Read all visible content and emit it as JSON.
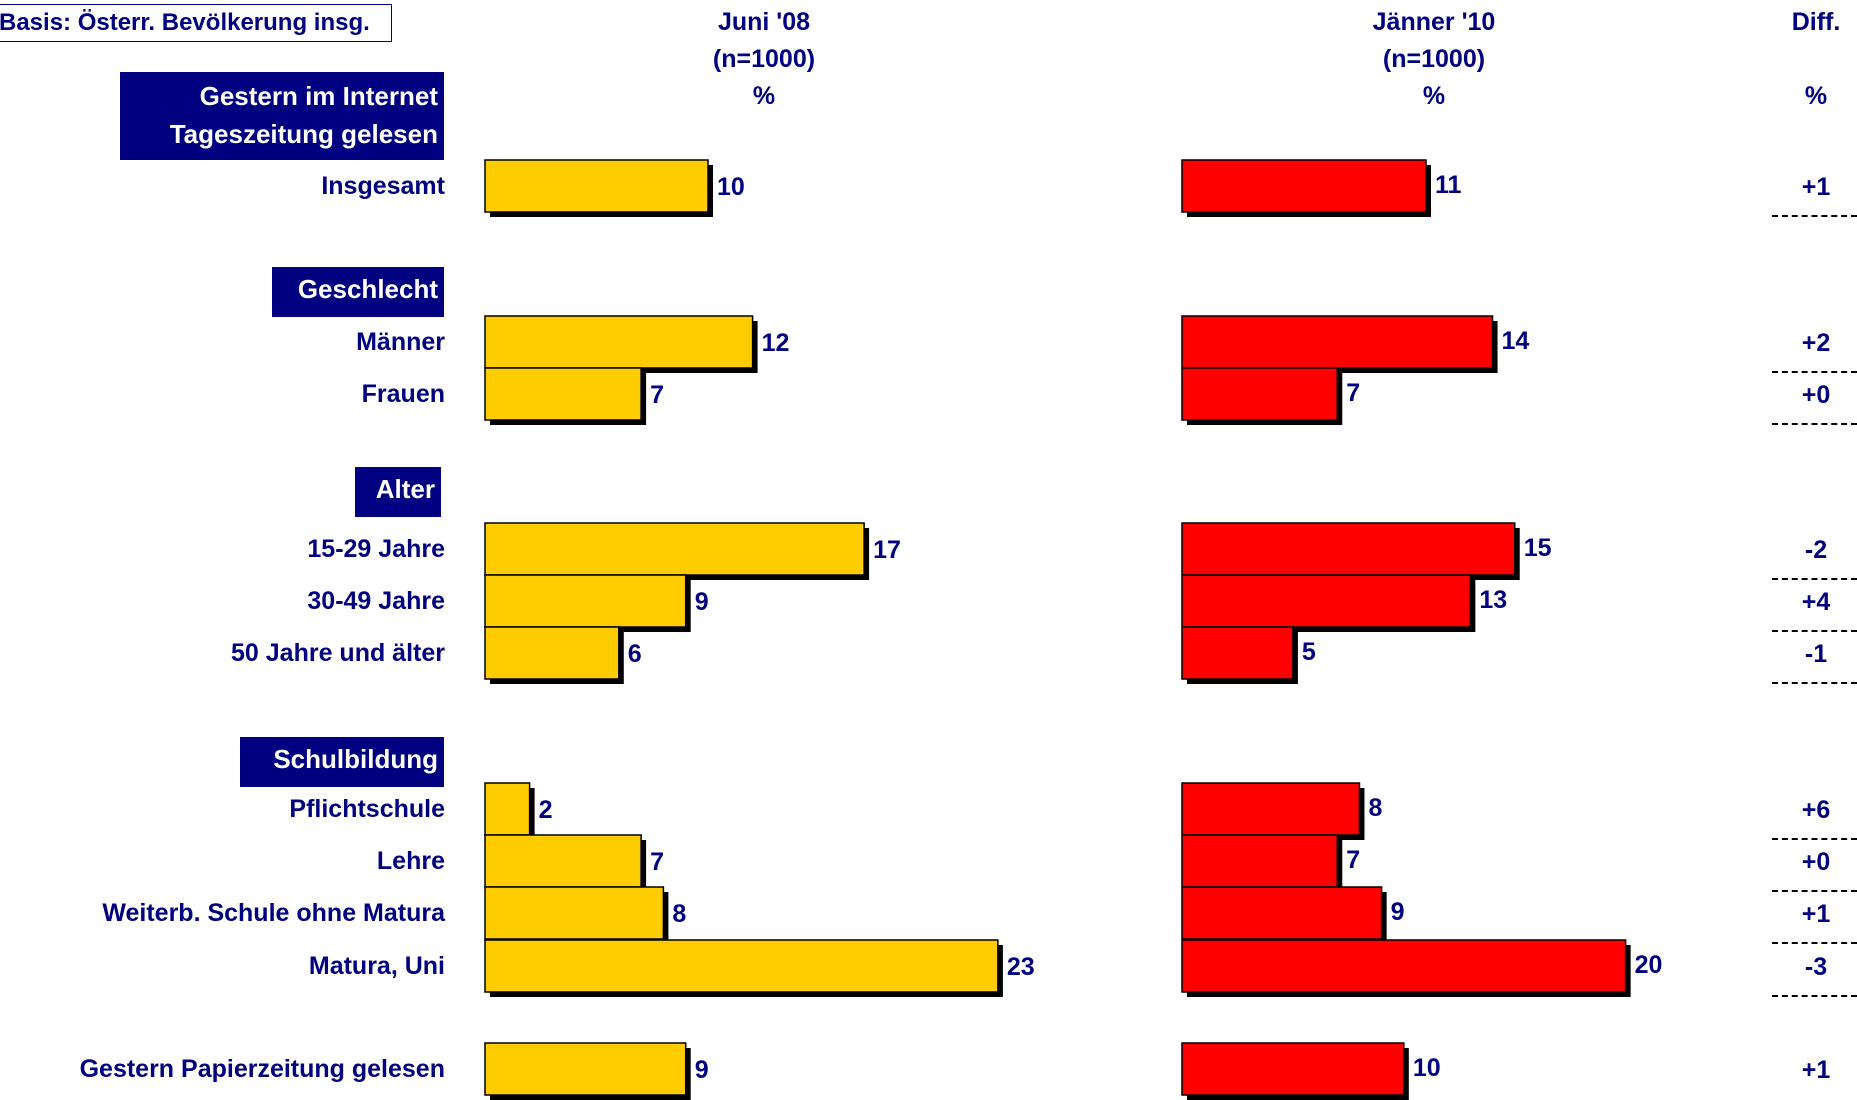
{
  "header": {
    "basis": "Basis: Österr. Bevölkerung insg.",
    "col1": {
      "line1": "Juni '08",
      "line2": "(n=1000)",
      "line3": "%"
    },
    "col2": {
      "line1": "Jänner '10",
      "line2": "(n=1000)",
      "line3": "%"
    },
    "diff": {
      "line1": "Diff.",
      "line3": "%"
    }
  },
  "sections": [
    {
      "title_lines": [
        "Gestern im Internet",
        "Tageszeitung gelesen"
      ]
    },
    {
      "title_lines": [
        "Geschlecht"
      ]
    },
    {
      "title_lines": [
        "Alter"
      ]
    },
    {
      "title_lines": [
        "Schulbildung"
      ]
    }
  ],
  "chart_data": {
    "type": "bar",
    "orientation": "horizontal",
    "categories": [
      "Insgesamt",
      "Männer",
      "Frauen",
      "15-29 Jahre",
      "30-49 Jahre",
      "50 Jahre und älter",
      "Pflichtschule",
      "Lehre",
      "Weiterb. Schule ohne Matura",
      "Matura, Uni",
      "Gestern Papierzeitung gelesen"
    ],
    "series": [
      {
        "name": "Juni '08",
        "color": "#FFCC00",
        "values": [
          10,
          12,
          7,
          17,
          9,
          6,
          2,
          7,
          8,
          23,
          9
        ]
      },
      {
        "name": "Jänner '10",
        "color": "#FF0000",
        "values": [
          11,
          14,
          7,
          15,
          13,
          5,
          8,
          7,
          9,
          20,
          10
        ]
      }
    ],
    "diff": [
      "+1",
      "+2",
      "+0",
      "-2",
      "+4",
      "-1",
      "+6",
      "+0",
      "+1",
      "-3",
      "+1"
    ]
  }
}
